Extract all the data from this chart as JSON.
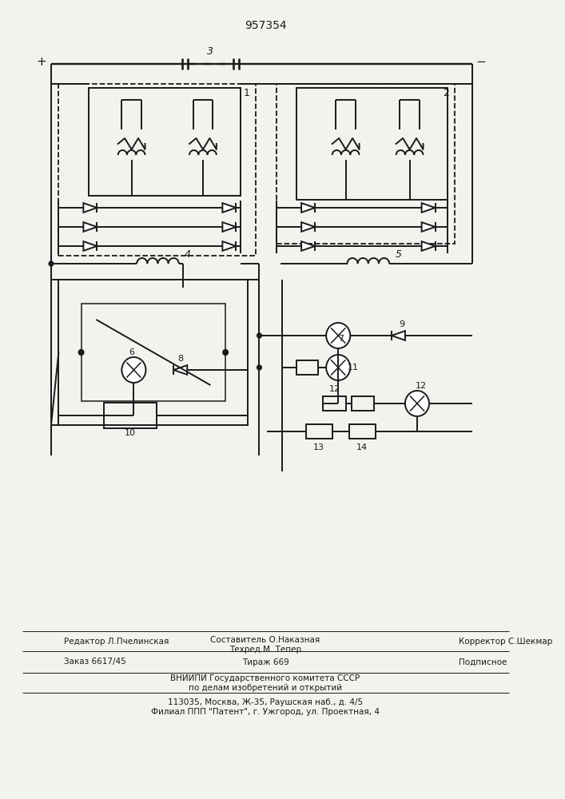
{
  "title": "957354",
  "bg_color": "#f2f2ee",
  "line_color": "#1a1a1a",
  "footer": {
    "row1_left": "Редактор Л.Пчелинская",
    "row1_center_l1": "Составитель О.Наказная",
    "row1_center_l2": "Техред М. Тепер",
    "row1_right": "Корректор С.Шекмар",
    "row2_left": "Заказ 6617/45",
    "row2_center": "Тираж 669",
    "row2_right": "Подписное",
    "row3": "ВНИИПИ Государственного комитета СССР",
    "row4": "по делам изобретений и открытий",
    "row5": "113035, Москва, Ж-35, Раушская наб., д. 4/5",
    "row6": "Филиал ПППатент\", г. Ужгород, ул. Проектная, 4"
  }
}
